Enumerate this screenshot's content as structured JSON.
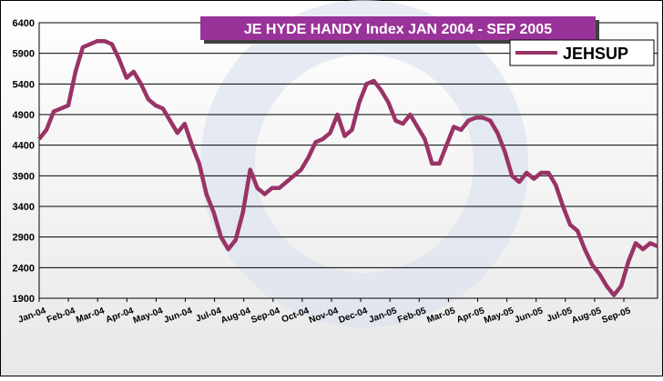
{
  "chart_data": {
    "type": "line",
    "title": "JE HYDE HANDY Index JAN 2004 - SEP 2005",
    "xticks": [
      "Jan-04",
      "Feb-04",
      "Mar-04",
      "Apr-04",
      "May-04",
      "Jun-04",
      "Jul-04",
      "Aug-04",
      "Sep-04",
      "Oct-04",
      "Nov-04",
      "Dec-04",
      "Jan-05",
      "Feb-05",
      "Mar-05",
      "Apr-05",
      "May-05",
      "Jun-05",
      "Jul-05",
      "Aug-05",
      "Sep-05"
    ],
    "series": [
      {
        "name": "JEHSUP",
        "color": "#993366",
        "values": [
          4500,
          4650,
          4950,
          5000,
          5050,
          5600,
          6000,
          6050,
          6100,
          6100,
          6050,
          5800,
          5500,
          5600,
          5400,
          5150,
          5050,
          5000,
          4800,
          4600,
          4750,
          4400,
          4100,
          3600,
          3300,
          2900,
          2700,
          2850,
          3300,
          4000,
          3700,
          3600,
          3700,
          3700,
          3800,
          3900,
          4000,
          4200,
          4450,
          4500,
          4600,
          4900,
          4550,
          4650,
          5100,
          5400,
          5450,
          5300,
          5100,
          4800,
          4750,
          4900,
          4700,
          4500,
          4100,
          4100,
          4400,
          4700,
          4650,
          4800,
          4850,
          4850,
          4800,
          4600,
          4300,
          3900,
          3800,
          3950,
          3850,
          3950,
          3950,
          3750,
          3400,
          3100,
          3000,
          2700,
          2450,
          2300,
          2100,
          1950,
          2100,
          2500,
          2800,
          2700,
          2800,
          2750
        ]
      }
    ],
    "ylim": [
      1900,
      6400
    ],
    "yticks": [
      1900,
      2400,
      2900,
      3400,
      3900,
      4400,
      4900,
      5400,
      5900,
      6400
    ],
    "grid": true,
    "legend": "upper right"
  }
}
